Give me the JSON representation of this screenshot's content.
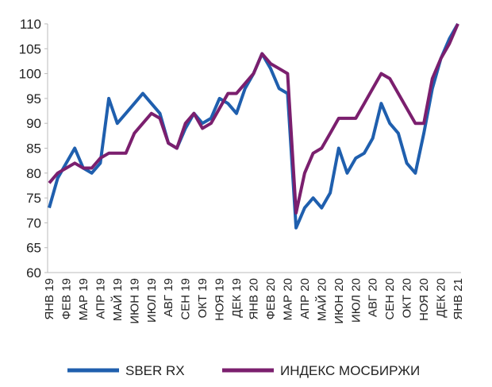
{
  "chart_data": {
    "type": "line",
    "categories": [
      "ЯНВ 19",
      null,
      "ФЕВ 19",
      null,
      "МАР 19",
      null,
      "АПР 19",
      null,
      "МАЙ 19",
      null,
      "ИЮН 19",
      null,
      "ИЮЛ 19",
      null,
      "АВГ 19",
      null,
      "СЕН 19",
      null,
      "ОКТ 19",
      null,
      "НОЯ 19",
      null,
      "ДЕК 19",
      null,
      "ЯНВ 20",
      null,
      "ФЕВ 20",
      null,
      "МАР 20",
      null,
      "АПР 20",
      null,
      "МАЙ 20",
      null,
      "ИЮН 20",
      null,
      "ИЮЛ 20",
      null,
      "АВГ 20",
      null,
      "СЕН 20",
      null,
      "ОКТ 20",
      null,
      "НОЯ 20",
      null,
      "ДЕК 20",
      null,
      "ЯНВ 21"
    ],
    "series": [
      {
        "name": "SBER RX",
        "color": "#1f5fae",
        "values": [
          73,
          79,
          82,
          85,
          81,
          80,
          82,
          95,
          90,
          92,
          94,
          96,
          94,
          92,
          86,
          85,
          89,
          92,
          90,
          91,
          95,
          94,
          92,
          97,
          100,
          104,
          101,
          97,
          96,
          69,
          73,
          75,
          73,
          76,
          85,
          80,
          83,
          84,
          87,
          94,
          90,
          88,
          82,
          80,
          88,
          97,
          103,
          107,
          110
        ]
      },
      {
        "name": "ИНДЕКС МОСБИРЖИ",
        "color": "#7b1f6e",
        "values": [
          78,
          80,
          81,
          82,
          81,
          81,
          83,
          84,
          84,
          84,
          88,
          90,
          92,
          91,
          86,
          85,
          90,
          92,
          89,
          90,
          93,
          96,
          96,
          98,
          100,
          104,
          102,
          101,
          100,
          72,
          80,
          84,
          85,
          88,
          91,
          91,
          91,
          94,
          97,
          100,
          99,
          96,
          93,
          90,
          90,
          99,
          103,
          106,
          110
        ]
      }
    ],
    "ylim": [
      60,
      110
    ],
    "yticks": [
      60,
      65,
      70,
      75,
      80,
      85,
      90,
      95,
      100,
      105,
      110
    ],
    "grid": false
  }
}
